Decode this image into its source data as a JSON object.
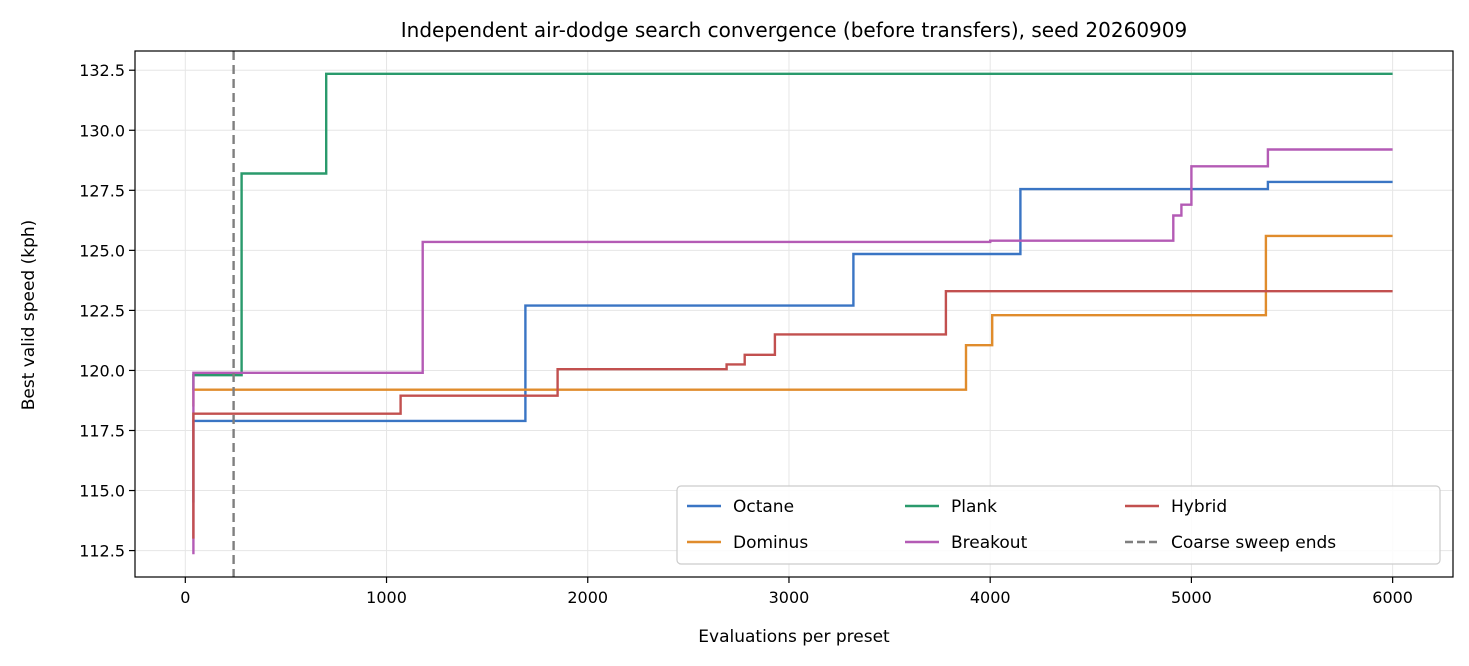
{
  "chart_data": {
    "type": "line",
    "step": true,
    "title": "Independent air-dodge search convergence (before transfers), seed 20260909",
    "xlabel": "Evaluations per preset",
    "ylabel": "Best valid speed (kph)",
    "xlim": [
      -250,
      6300
    ],
    "ylim": [
      111.4,
      133.3
    ],
    "xticks": [
      0,
      1000,
      2000,
      3000,
      4000,
      5000,
      6000
    ],
    "yticks": [
      112.5,
      115.0,
      117.5,
      120.0,
      122.5,
      125.0,
      127.5,
      130.0,
      132.5
    ],
    "xtick_labels": [
      "0",
      "1000",
      "2000",
      "3000",
      "4000",
      "5000",
      "6000"
    ],
    "ytick_labels": [
      "112.5",
      "115.0",
      "117.5",
      "120.0",
      "122.5",
      "125.0",
      "127.5",
      "130.0",
      "132.5"
    ],
    "grid": true,
    "legend_position": "bottom-right",
    "legend_columns": 3,
    "series": [
      {
        "name": "Octane",
        "color": "#3a75c4",
        "points": [
          [
            40,
            114.5
          ],
          [
            40,
            117.9
          ],
          [
            1690,
            117.9
          ],
          [
            1690,
            122.7
          ],
          [
            3320,
            122.7
          ],
          [
            3320,
            124.85
          ],
          [
            4150,
            124.85
          ],
          [
            4150,
            127.55
          ],
          [
            5380,
            127.55
          ],
          [
            5380,
            127.85
          ],
          [
            6000,
            127.85
          ]
        ]
      },
      {
        "name": "Dominus",
        "color": "#e08c2c",
        "points": [
          [
            40,
            118.5
          ],
          [
            40,
            119.2
          ],
          [
            3880,
            119.2
          ],
          [
            3880,
            121.05
          ],
          [
            4010,
            121.05
          ],
          [
            4010,
            122.3
          ],
          [
            5370,
            122.3
          ],
          [
            5370,
            125.6
          ],
          [
            6000,
            125.6
          ]
        ]
      },
      {
        "name": "Plank",
        "color": "#2a9a6c",
        "points": [
          [
            40,
            119.2
          ],
          [
            40,
            119.8
          ],
          [
            280,
            119.8
          ],
          [
            280,
            128.2
          ],
          [
            700,
            128.2
          ],
          [
            700,
            132.35
          ],
          [
            6000,
            132.35
          ]
        ]
      },
      {
        "name": "Breakout",
        "color": "#b45bb5",
        "points": [
          [
            40,
            112.35
          ],
          [
            40,
            119.9
          ],
          [
            1180,
            119.9
          ],
          [
            1180,
            125.35
          ],
          [
            4000,
            125.35
          ],
          [
            4000,
            125.4
          ],
          [
            4910,
            125.4
          ],
          [
            4910,
            126.45
          ],
          [
            4950,
            126.45
          ],
          [
            4950,
            126.9
          ],
          [
            5000,
            126.9
          ],
          [
            5000,
            128.5
          ],
          [
            5380,
            128.5
          ],
          [
            5380,
            129.2
          ],
          [
            6000,
            129.2
          ]
        ]
      },
      {
        "name": "Hybrid",
        "color": "#c2504f",
        "points": [
          [
            40,
            113.0
          ],
          [
            40,
            118.2
          ],
          [
            1070,
            118.2
          ],
          [
            1070,
            118.95
          ],
          [
            1850,
            118.95
          ],
          [
            1850,
            120.05
          ],
          [
            2690,
            120.05
          ],
          [
            2690,
            120.25
          ],
          [
            2780,
            120.25
          ],
          [
            2780,
            120.65
          ],
          [
            2930,
            120.65
          ],
          [
            2930,
            121.5
          ],
          [
            3780,
            121.5
          ],
          [
            3780,
            123.3
          ],
          [
            6000,
            123.3
          ]
        ]
      }
    ],
    "vline": {
      "name": "Coarse sweep ends",
      "x": 240,
      "color": "#7f7f7f",
      "style": "dashed"
    }
  }
}
